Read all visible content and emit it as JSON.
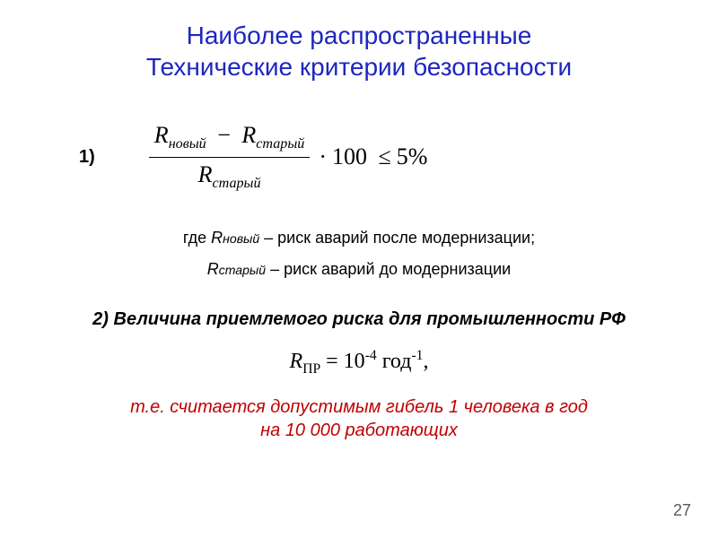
{
  "title": {
    "line1": "Наиболее распространенные",
    "line2": "Технические критерии безопасности",
    "color": "#1e26bf",
    "fontsize": 28
  },
  "item1": {
    "marker": "1)",
    "formula": {
      "R": "R",
      "sub_new": "новый",
      "sub_old": "старый",
      "minus": "−",
      "times": "·",
      "hundred": "100",
      "le": "≤",
      "rhs": "5%"
    },
    "defs": {
      "line1_pre": "где ",
      "line1_sym": "R",
      "line1_sub": "новый",
      "line1_post": " – риск аварий после модернизации;",
      "line2_sym": "R",
      "line2_sub": "старый",
      "line2_post": " – риск аварий до модернизации"
    }
  },
  "item2": {
    "heading": "2) Величина приемлемого риска для промышленности РФ",
    "formula": {
      "R": "R",
      "Rsub": "ПР",
      "eq": " = 10",
      "exp": "-4",
      "space": "  год",
      "yexp": "-1",
      "comma": ","
    },
    "note_line1": "т.е. считается допустимым гибель 1 человека в год",
    "note_line2": "на 10 000 работающих",
    "note_color": "#c00000"
  },
  "page_number": "27",
  "colors": {
    "background": "#ffffff",
    "text": "#000000"
  }
}
